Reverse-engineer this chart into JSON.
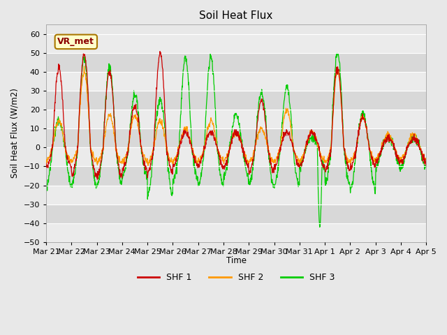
{
  "title": "Soil Heat Flux",
  "ylabel": "Soil Heat Flux (W/m2)",
  "xlabel": "Time",
  "ylim": [
    -50,
    65
  ],
  "yticks": [
    -50,
    -40,
    -30,
    -20,
    -10,
    0,
    10,
    20,
    30,
    40,
    50,
    60
  ],
  "bg_color": "#e8e8e8",
  "band_colors": [
    "#ebebeb",
    "#d8d8d8"
  ],
  "line_colors": [
    "#cc0000",
    "#ff9900",
    "#00cc00"
  ],
  "legend_labels": [
    "SHF 1",
    "SHF 2",
    "SHF 3"
  ],
  "annotation_text": "VR_met",
  "annotation_bg": "#ffffcc",
  "annotation_border": "#aa7700",
  "x_labels": [
    "Mar 21",
    "Mar 22",
    "Mar 23",
    "Mar 24",
    "Mar 25",
    "Mar 26",
    "Mar 27",
    "Mar 28",
    "Mar 29",
    "Mar 30",
    "Mar 31",
    "Apr 1",
    "Apr 2",
    "Apr 3",
    "Apr 4",
    "Apr 5"
  ],
  "n_days": 15,
  "ppd": 96,
  "shf1_day_peaks": [
    42,
    50,
    40,
    22,
    50,
    8,
    8,
    8,
    25,
    8,
    8,
    42,
    16,
    5,
    5
  ],
  "shf1_night_trough": [
    -10,
    -15,
    -15,
    -12,
    -13,
    -10,
    -10,
    -10,
    -13,
    -10,
    -10,
    -12,
    -10,
    -8,
    -8
  ],
  "shf2_day_peaks": [
    14,
    40,
    17,
    17,
    14,
    10,
    14,
    8,
    10,
    20,
    8,
    40,
    16,
    7,
    7
  ],
  "shf2_night_trough": [
    -7,
    -7,
    -8,
    -7,
    -8,
    -7,
    -7,
    -7,
    -8,
    -7,
    -7,
    -8,
    -7,
    -6,
    -6
  ],
  "shf3_day_peaks": [
    14,
    47,
    43,
    28,
    25,
    47,
    47,
    17,
    29,
    32,
    5,
    50,
    18,
    5,
    5
  ],
  "shf3_night_trough": [
    -20,
    -20,
    -20,
    -15,
    -25,
    -17,
    -20,
    -15,
    -20,
    -20,
    -10,
    -20,
    -22,
    -10,
    -10
  ],
  "shf3_special_dip_day": 10,
  "shf3_special_dip_val": -42
}
